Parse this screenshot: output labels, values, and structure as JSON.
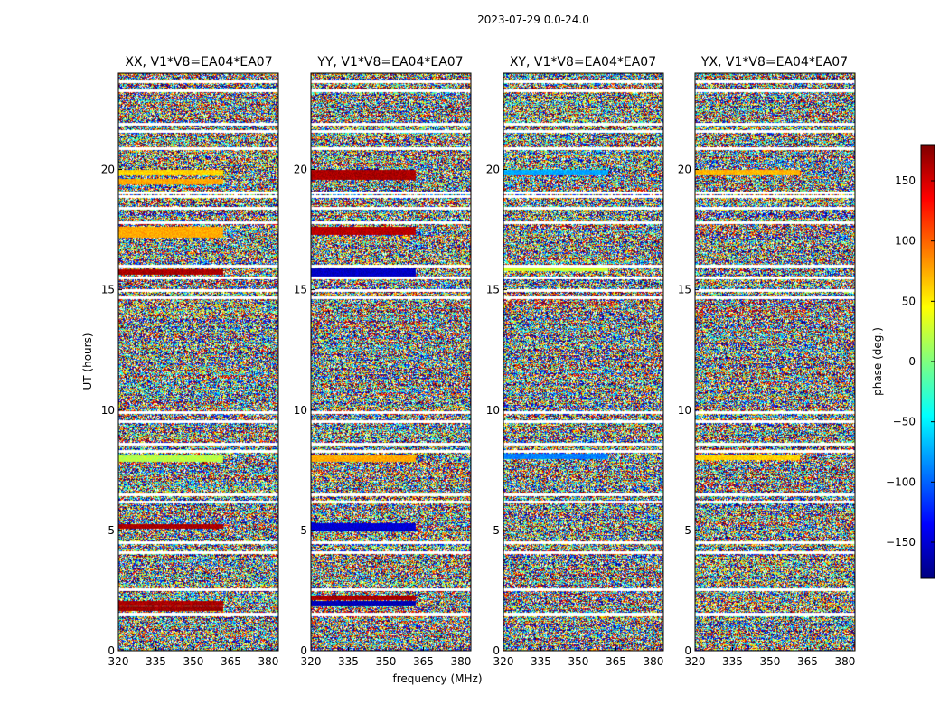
{
  "chart_data": {
    "type": "heatmap",
    "suptitle": "2023-07-29 0.0-24.0",
    "xlabel": "frequency (MHz)",
    "ylabel": "UT (hours)",
    "xlim": [
      320,
      384
    ],
    "ylim": [
      0,
      24
    ],
    "xticks": [
      "320",
      "335",
      "350",
      "365",
      "380"
    ],
    "yticks": [
      "0",
      "5",
      "10",
      "15",
      "20"
    ],
    "panels": [
      {
        "title": "XX, V1*V8=EA04*EA07",
        "polarization": "XX",
        "coherent_bands": [
          {
            "t": [
              1.9,
              2.05
            ],
            "f": [
              320,
              362
            ],
            "phase": 165
          },
          {
            "t": [
              1.7,
              1.85
            ],
            "f": [
              320,
              362
            ],
            "phase": 170
          },
          {
            "t": [
              5.1,
              5.25
            ],
            "f": [
              320,
              362
            ],
            "phase": 165
          },
          {
            "t": [
              7.9,
              8.1
            ],
            "f": [
              320,
              362
            ],
            "phase": 20
          },
          {
            "t": [
              15.65,
              15.85
            ],
            "f": [
              320,
              362
            ],
            "phase": 165
          },
          {
            "t": [
              17.2,
              17.6
            ],
            "f": [
              320,
              362
            ],
            "phase": 75
          },
          {
            "t": [
              19.4,
              19.6
            ],
            "f": [
              320,
              362
            ],
            "phase": 75
          },
          {
            "t": [
              19.8,
              20.0
            ],
            "f": [
              320,
              362
            ],
            "phase": 60
          }
        ]
      },
      {
        "title": "YY, V1*V8=EA04*EA07",
        "polarization": "YY",
        "coherent_bands": [
          {
            "t": [
              1.9,
              2.05
            ],
            "f": [
              320,
              362
            ],
            "phase": -160
          },
          {
            "t": [
              2.15,
              2.3
            ],
            "f": [
              320,
              362
            ],
            "phase": 165
          },
          {
            "t": [
              5.0,
              5.3
            ],
            "f": [
              320,
              362
            ],
            "phase": -150
          },
          {
            "t": [
              7.9,
              8.1
            ],
            "f": [
              320,
              362
            ],
            "phase": 75
          },
          {
            "t": [
              15.6,
              15.9
            ],
            "f": [
              320,
              362
            ],
            "phase": -155
          },
          {
            "t": [
              17.3,
              17.6
            ],
            "f": [
              320,
              362
            ],
            "phase": 160
          },
          {
            "t": [
              19.6,
              20.0
            ],
            "f": [
              320,
              362
            ],
            "phase": 165
          }
        ]
      },
      {
        "title": "XY, V1*V8=EA04*EA07",
        "polarization": "XY",
        "coherent_bands": [
          {
            "t": [
              8.0,
              8.2
            ],
            "f": [
              320,
              362
            ],
            "phase": -90
          },
          {
            "t": [
              15.8,
              16.0
            ],
            "f": [
              320,
              362
            ],
            "phase": 30
          },
          {
            "t": [
              19.8,
              20.0
            ],
            "f": [
              320,
              362
            ],
            "phase": -75
          }
        ]
      },
      {
        "title": "YX, V1*V8=EA04*EA07",
        "polarization": "YX",
        "coherent_bands": [
          {
            "t": [
              7.95,
              8.1
            ],
            "f": [
              320,
              362
            ],
            "phase": 60
          },
          {
            "t": [
              19.8,
              20.0
            ],
            "f": [
              320,
              362
            ],
            "phase": 70
          }
        ]
      }
    ],
    "flagged_hours": [
      1.5,
      1.55,
      2.55,
      4.1,
      4.5,
      6.2,
      6.5,
      8.3,
      8.6,
      9.55,
      9.9,
      14.7,
      15.0,
      15.5,
      16.0,
      17.8,
      18.4,
      18.9,
      19.05,
      20.9,
      21.6,
      21.9,
      23.3,
      23.65
    ],
    "colorbar": {
      "label": "phase (deg.)",
      "range": [
        -180,
        180
      ],
      "ticks": [
        "150",
        "100",
        "50",
        "0",
        "−50",
        "−100",
        "−150"
      ],
      "colormap": "jet",
      "colors": [
        "#00007f",
        "#0000ff",
        "#007fff",
        "#00ffff",
        "#7fff7f",
        "#ffff00",
        "#ff7f00",
        "#ff0000",
        "#7f0000"
      ]
    }
  }
}
